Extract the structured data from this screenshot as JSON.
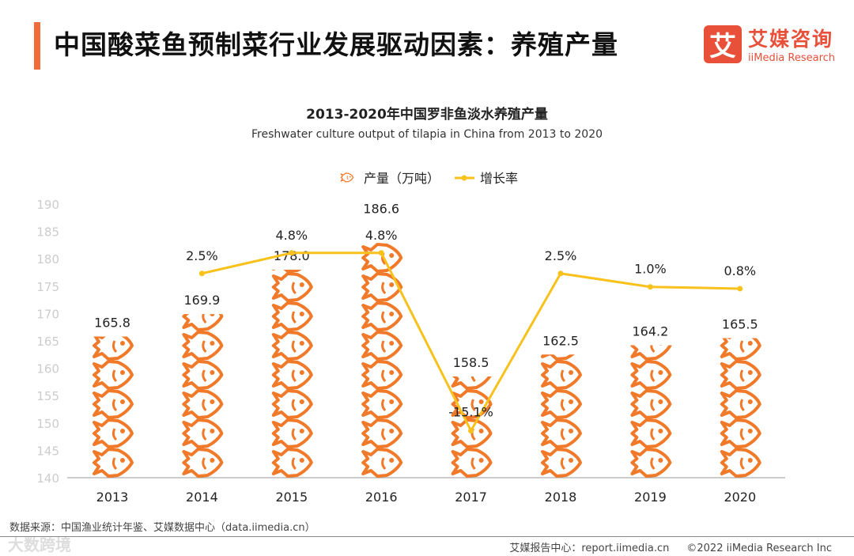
{
  "header": {
    "title": "中国酸菜鱼预制菜行业发展驱动因素：养殖产量",
    "logo_mark": "艾",
    "logo_cn": "艾媒咨询",
    "logo_en": "iiMedia Research"
  },
  "chart_data": {
    "type": "bar+line",
    "title": "2013-2020年中国罗非鱼淡水养殖产量",
    "subtitle": "Freshwater culture output of tilapia in China from 2013 to 2020",
    "categories": [
      "2013",
      "2014",
      "2015",
      "2016",
      "2017",
      "2018",
      "2019",
      "2020"
    ],
    "series": [
      {
        "name": "产量（万吨）",
        "type": "pictorial-bar",
        "values": [
          165.8,
          169.9,
          178.0,
          186.6,
          158.5,
          162.5,
          164.2,
          165.5
        ],
        "labels": [
          "165.8",
          "169.9",
          "178.0",
          "186.6",
          "158.5",
          "162.5",
          "164.2",
          "165.5"
        ],
        "color": "#f07a2a"
      },
      {
        "name": "增长率",
        "type": "line",
        "values": [
          null,
          2.5,
          4.8,
          4.8,
          -15.1,
          2.5,
          1.0,
          0.8
        ],
        "labels": [
          "",
          "2.5%",
          "4.8%",
          "4.8%",
          "-15.1%",
          "2.5%",
          "1.0%",
          "0.8%"
        ],
        "color": "#f8c11c"
      }
    ],
    "yticks": [
      "140",
      "145",
      "150",
      "155",
      "160",
      "165",
      "170",
      "175",
      "180",
      "185",
      "190"
    ],
    "ylim": [
      140,
      190
    ],
    "legend": "top-center"
  },
  "footer": {
    "source": "数据来源：中国渔业统计年鉴、艾媒数据中心（data.iimedia.cn）",
    "report": "艾媒报告中心：report.iimedia.cn",
    "copyright": "©2022 iiMedia Research Inc",
    "watermark": "大数跨境"
  }
}
